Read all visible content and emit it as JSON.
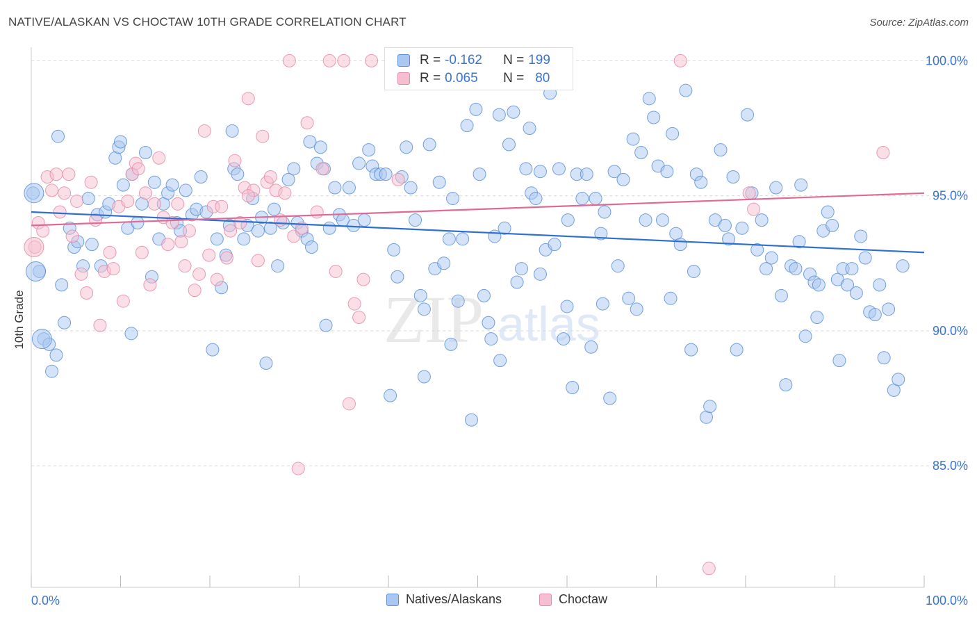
{
  "title": "NATIVE/ALASKAN VS CHOCTAW 10TH GRADE CORRELATION CHART",
  "source": "Source: ZipAtlas.com",
  "watermark": {
    "part1": "ZIP",
    "part2": "atlas"
  },
  "legend": {
    "rows": [
      {
        "r_label": "R =",
        "r_value": "-0.162",
        "n_label": "N =",
        "n_value": "199"
      },
      {
        "r_label": "R =",
        "r_value": "0.065",
        "n_label": "N =",
        "n_value": "80"
      }
    ]
  },
  "colors": {
    "blue_fill": "#a9c7f0",
    "blue_stroke": "#5b8fd8",
    "blue_line": "#2f6fd0",
    "pink_fill": "#f6bfd0",
    "pink_stroke": "#e48aa8",
    "pink_line": "#e06a95",
    "axis_text": "#3a74d1",
    "grid": "#d9d9d9"
  },
  "chart_data": {
    "type": "scatter",
    "title": "NATIVE/ALASKAN VS CHOCTAW 10TH GRADE CORRELATION CHART",
    "xlabel": "",
    "ylabel": "10th Grade",
    "xlim": [
      0,
      100
    ],
    "ylim": [
      80.5,
      100.5
    ],
    "x_tick_labels": [
      "0.0%",
      "100.0%"
    ],
    "y_ticks": [
      85,
      90,
      95,
      100
    ],
    "y_tick_labels": [
      "85.0%",
      "90.0%",
      "95.0%",
      "100.0%"
    ],
    "grid": true,
    "legend_position": "bottom",
    "series": [
      {
        "name": "Natives/Alaskans",
        "r": -0.162,
        "n": 199,
        "trend": {
          "x": [
            0,
            100
          ],
          "y": [
            94.4,
            92.9
          ]
        },
        "points": [
          [
            0.2,
            95.1
          ],
          [
            0.9,
            92.2
          ],
          [
            1.4,
            89.7
          ],
          [
            2.0,
            89.5
          ],
          [
            2.3,
            88.5
          ],
          [
            2.8,
            89.1
          ],
          [
            3.4,
            91.7
          ],
          [
            3.7,
            90.3
          ],
          [
            4.3,
            93.8
          ],
          [
            4.8,
            93.1
          ],
          [
            5.2,
            93.3
          ],
          [
            5.8,
            92.4
          ],
          [
            6.4,
            94.9
          ],
          [
            6.8,
            93.2
          ],
          [
            7.4,
            94.3
          ],
          [
            7.8,
            92.4
          ],
          [
            8.3,
            94.4
          ],
          [
            8.7,
            94.7
          ],
          [
            9.4,
            96.4
          ],
          [
            9.8,
            96.8
          ],
          [
            10.3,
            95.4
          ],
          [
            10.8,
            93.8
          ],
          [
            11.3,
            95.8
          ],
          [
            11.9,
            94.0
          ],
          [
            12.4,
            94.7
          ],
          [
            12.8,
            96.6
          ],
          [
            13.8,
            95.5
          ],
          [
            14.3,
            93.4
          ],
          [
            14.8,
            94.7
          ],
          [
            15.3,
            95.1
          ],
          [
            15.8,
            95.4
          ],
          [
            16.3,
            94.0
          ],
          [
            16.7,
            93.7
          ],
          [
            17.3,
            95.2
          ],
          [
            18.0,
            94.3
          ],
          [
            18.5,
            94.5
          ],
          [
            19.0,
            95.7
          ],
          [
            19.6,
            94.4
          ],
          [
            20.3,
            89.3
          ],
          [
            20.8,
            93.4
          ],
          [
            21.3,
            91.6
          ],
          [
            21.8,
            92.8
          ],
          [
            22.2,
            93.9
          ],
          [
            22.7,
            96.0
          ],
          [
            23.1,
            95.8
          ],
          [
            23.8,
            93.4
          ],
          [
            24.2,
            93.9
          ],
          [
            24.8,
            94.9
          ],
          [
            25.4,
            93.7
          ],
          [
            25.8,
            94.2
          ],
          [
            26.3,
            88.8
          ],
          [
            26.8,
            93.8
          ],
          [
            27.2,
            94.5
          ],
          [
            27.6,
            92.4
          ],
          [
            28.2,
            94.0
          ],
          [
            28.8,
            95.6
          ],
          [
            29.4,
            96.0
          ],
          [
            29.8,
            94.0
          ],
          [
            30.3,
            93.7
          ],
          [
            30.9,
            93.4
          ],
          [
            31.4,
            93.1
          ],
          [
            32.0,
            96.2
          ],
          [
            32.4,
            96.8
          ],
          [
            32.8,
            96.0
          ],
          [
            33.4,
            93.8
          ],
          [
            34.0,
            95.3
          ],
          [
            34.5,
            94.3
          ],
          [
            34.9,
            94.1
          ],
          [
            35.6,
            95.3
          ],
          [
            36.1,
            93.9
          ],
          [
            36.7,
            96.2
          ],
          [
            37.3,
            94.1
          ],
          [
            37.8,
            96.7
          ],
          [
            38.2,
            96.1
          ],
          [
            38.6,
            95.8
          ],
          [
            39.1,
            95.8
          ],
          [
            39.7,
            95.8
          ],
          [
            40.2,
            87.6
          ],
          [
            40.6,
            93.0
          ],
          [
            41.0,
            92.0
          ],
          [
            41.5,
            95.7
          ],
          [
            42.0,
            96.8
          ],
          [
            42.5,
            95.3
          ],
          [
            43.0,
            94.1
          ],
          [
            43.6,
            91.3
          ],
          [
            44.0,
            90.8
          ],
          [
            44.6,
            96.9
          ],
          [
            45.2,
            92.3
          ],
          [
            45.7,
            95.5
          ],
          [
            46.2,
            92.5
          ],
          [
            46.8,
            93.4
          ],
          [
            47.2,
            94.9
          ],
          [
            47.8,
            91.1
          ],
          [
            48.3,
            93.4
          ],
          [
            48.8,
            97.6
          ],
          [
            49.3,
            86.7
          ],
          [
            49.8,
            98.2
          ],
          [
            50.2,
            95.8
          ],
          [
            50.7,
            91.3
          ],
          [
            51.2,
            90.3
          ],
          [
            51.5,
            89.7
          ],
          [
            51.9,
            93.5
          ],
          [
            52.4,
            98.0
          ],
          [
            53.0,
            93.8
          ],
          [
            53.5,
            96.9
          ],
          [
            54.0,
            98.1
          ],
          [
            54.4,
            91.8
          ],
          [
            54.9,
            92.3
          ],
          [
            55.4,
            96.0
          ],
          [
            56.0,
            95.1
          ],
          [
            56.5,
            94.9
          ],
          [
            57.0,
            95.9
          ],
          [
            57.6,
            93.0
          ],
          [
            58.1,
            98.8
          ],
          [
            58.6,
            93.2
          ],
          [
            59.1,
            96.0
          ],
          [
            59.6,
            89.7
          ],
          [
            60.1,
            94.1
          ],
          [
            60.6,
            87.9
          ],
          [
            61.1,
            95.8
          ],
          [
            61.7,
            94.9
          ],
          [
            62.2,
            95.8
          ],
          [
            62.7,
            89.4
          ],
          [
            63.2,
            94.9
          ],
          [
            63.8,
            93.6
          ],
          [
            64.2,
            94.4
          ],
          [
            64.8,
            87.5
          ],
          [
            65.3,
            95.9
          ],
          [
            65.7,
            92.4
          ],
          [
            66.3,
            95.6
          ],
          [
            66.9,
            91.2
          ],
          [
            67.4,
            97.1
          ],
          [
            67.8,
            90.8
          ],
          [
            68.3,
            96.6
          ],
          [
            68.8,
            94.1
          ],
          [
            69.2,
            98.6
          ],
          [
            69.7,
            97.9
          ],
          [
            70.2,
            96.1
          ],
          [
            70.7,
            94.1
          ],
          [
            71.2,
            95.9
          ],
          [
            71.6,
            91.2
          ],
          [
            72.2,
            93.6
          ],
          [
            72.7,
            93.2
          ],
          [
            73.3,
            98.9
          ],
          [
            73.9,
            89.3
          ],
          [
            74.5,
            95.8
          ],
          [
            75.0,
            95.5
          ],
          [
            75.6,
            86.8
          ],
          [
            76.0,
            87.2
          ],
          [
            76.6,
            94.1
          ],
          [
            77.2,
            96.7
          ],
          [
            77.7,
            93.9
          ],
          [
            78.1,
            93.4
          ],
          [
            78.6,
            95.7
          ],
          [
            79.0,
            89.3
          ],
          [
            79.6,
            93.8
          ],
          [
            80.2,
            98.0
          ],
          [
            80.7,
            95.1
          ],
          [
            81.3,
            93.0
          ],
          [
            81.8,
            94.1
          ],
          [
            82.3,
            92.3
          ],
          [
            82.9,
            92.7
          ],
          [
            83.4,
            95.3
          ],
          [
            84.0,
            91.3
          ],
          [
            84.5,
            88.0
          ],
          [
            85.1,
            92.4
          ],
          [
            85.6,
            92.3
          ],
          [
            86.2,
            95.4
          ],
          [
            86.7,
            89.8
          ],
          [
            87.2,
            92.1
          ],
          [
            87.7,
            91.8
          ],
          [
            88.2,
            91.7
          ],
          [
            88.7,
            93.7
          ],
          [
            89.2,
            94.4
          ],
          [
            89.7,
            93.9
          ],
          [
            90.3,
            91.9
          ],
          [
            90.9,
            92.3
          ],
          [
            91.4,
            91.7
          ],
          [
            91.9,
            92.3
          ],
          [
            92.4,
            91.4
          ],
          [
            92.9,
            93.5
          ],
          [
            93.4,
            92.7
          ],
          [
            93.9,
            90.7
          ],
          [
            94.5,
            90.6
          ],
          [
            95.0,
            91.7
          ],
          [
            95.5,
            89.0
          ],
          [
            96.0,
            90.8
          ],
          [
            96.6,
            87.8
          ],
          [
            97.1,
            88.2
          ],
          [
            97.6,
            92.4
          ],
          [
            3.0,
            97.2
          ],
          [
            10.0,
            97.0
          ],
          [
            22.5,
            97.4
          ],
          [
            31.2,
            97.0
          ],
          [
            55.8,
            97.5
          ],
          [
            71.8,
            97.3
          ],
          [
            86.0,
            93.3
          ],
          [
            11.2,
            89.9
          ],
          [
            33.0,
            90.2
          ],
          [
            52.5,
            88.9
          ],
          [
            64.0,
            91.0
          ],
          [
            74.2,
            92.2
          ],
          [
            88.0,
            90.5
          ],
          [
            13.5,
            92.0
          ],
          [
            47.0,
            89.5
          ],
          [
            60.0,
            90.9
          ],
          [
            90.5,
            88.9
          ],
          [
            44.0,
            88.3
          ],
          [
            57.0,
            92.1
          ]
        ],
        "big_points": [
          [
            0.3,
            95.1
          ],
          [
            0.5,
            92.2
          ],
          [
            1.2,
            89.7
          ]
        ]
      },
      {
        "name": "Choctaw",
        "r": 0.065,
        "n": 80,
        "trend": {
          "x": [
            0,
            100
          ],
          "y": [
            93.9,
            95.1
          ]
        },
        "points": [
          [
            0.4,
            93.1
          ],
          [
            0.8,
            94.0
          ],
          [
            1.3,
            93.7
          ],
          [
            1.8,
            95.7
          ],
          [
            2.3,
            95.2
          ],
          [
            2.8,
            95.8
          ],
          [
            3.2,
            94.4
          ],
          [
            3.7,
            95.1
          ],
          [
            4.2,
            95.8
          ],
          [
            4.6,
            93.5
          ],
          [
            5.1,
            94.8
          ],
          [
            5.6,
            92.1
          ],
          [
            6.2,
            91.4
          ],
          [
            6.7,
            95.5
          ],
          [
            7.2,
            94.1
          ],
          [
            7.7,
            90.2
          ],
          [
            8.2,
            92.2
          ],
          [
            8.8,
            92.9
          ],
          [
            9.2,
            92.3
          ],
          [
            9.8,
            94.6
          ],
          [
            10.3,
            91.1
          ],
          [
            10.8,
            94.8
          ],
          [
            11.3,
            95.8
          ],
          [
            11.7,
            96.2
          ],
          [
            12.4,
            92.9
          ],
          [
            12.8,
            95.1
          ],
          [
            13.3,
            91.7
          ],
          [
            13.8,
            94.7
          ],
          [
            14.3,
            96.4
          ],
          [
            14.8,
            94.2
          ],
          [
            15.3,
            93.2
          ],
          [
            15.8,
            94.0
          ],
          [
            16.4,
            94.7
          ],
          [
            16.8,
            93.3
          ],
          [
            17.2,
            92.4
          ],
          [
            17.7,
            93.7
          ],
          [
            18.3,
            91.5
          ],
          [
            18.8,
            92.1
          ],
          [
            19.4,
            97.4
          ],
          [
            19.9,
            92.8
          ],
          [
            20.4,
            94.6
          ],
          [
            20.8,
            91.9
          ],
          [
            21.3,
            94.6
          ],
          [
            21.9,
            92.7
          ],
          [
            22.3,
            93.7
          ],
          [
            22.8,
            96.3
          ],
          [
            23.4,
            94.0
          ],
          [
            23.9,
            95.3
          ],
          [
            24.3,
            98.6
          ],
          [
            24.9,
            95.2
          ],
          [
            25.4,
            92.6
          ],
          [
            25.9,
            97.2
          ],
          [
            26.4,
            95.5
          ],
          [
            26.8,
            95.7
          ],
          [
            27.4,
            95.2
          ],
          [
            27.9,
            94.1
          ],
          [
            28.4,
            95.1
          ],
          [
            28.9,
            100.0
          ],
          [
            29.4,
            93.5
          ],
          [
            29.9,
            84.9
          ],
          [
            30.3,
            93.8
          ],
          [
            30.9,
            97.7
          ],
          [
            32.0,
            94.4
          ],
          [
            32.6,
            96.0
          ],
          [
            33.4,
            100.0
          ],
          [
            34.1,
            92.2
          ],
          [
            35.0,
            100.0
          ],
          [
            35.6,
            87.3
          ],
          [
            36.2,
            91.0
          ],
          [
            36.7,
            90.5
          ],
          [
            37.2,
            91.9
          ],
          [
            38.1,
            100.0
          ],
          [
            41.1,
            95.6
          ],
          [
            72.7,
            100.0
          ],
          [
            75.9,
            81.2
          ],
          [
            80.4,
            95.1
          ],
          [
            80.9,
            94.5
          ],
          [
            95.4,
            96.6
          ],
          [
            24.3,
            95.0
          ],
          [
            12.0,
            96.0
          ]
        ],
        "big_points": [
          [
            0.3,
            93.1
          ]
        ]
      }
    ]
  }
}
